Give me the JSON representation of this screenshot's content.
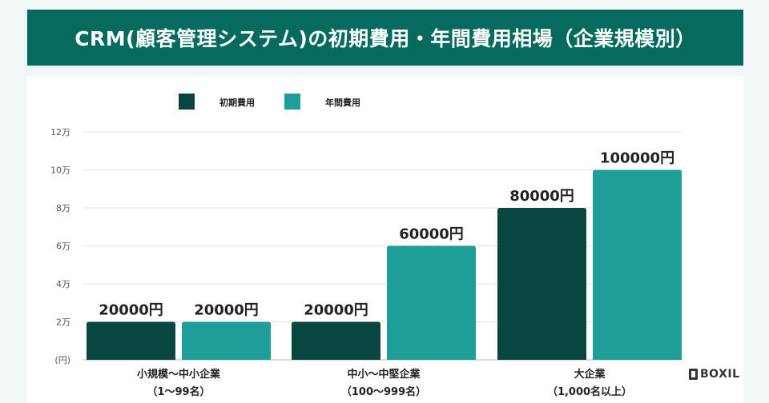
{
  "title": "CRM(顧客管理システム)の初期費用・年間費用相場（企業規模別）",
  "logo": {
    "text": "BOXIL",
    "icon": "boxil-logo-icon"
  },
  "colors": {
    "banner": "#066a5f",
    "initial": "#08463f",
    "annual": "#1f9d98",
    "grid": "#e3e3e3",
    "axis": "#555555",
    "text": "#222222"
  },
  "chart_data": {
    "type": "bar",
    "categories": [
      [
        "小規模〜中小企業",
        "（1〜99名）"
      ],
      [
        "中小〜中堅企業",
        "（100〜999名）"
      ],
      [
        "大企業",
        "（1,000名以上）"
      ]
    ],
    "series": [
      {
        "name": "初期費用",
        "values": [
          20000,
          20000,
          80000
        ],
        "labels": [
          "20000円",
          "20000円",
          "80000円"
        ]
      },
      {
        "name": "年間費用",
        "values": [
          20000,
          60000,
          100000
        ],
        "labels": [
          "20000円",
          "60000円",
          "100000円"
        ]
      }
    ],
    "y_ticks": [
      {
        "value": 0,
        "label": "(円)"
      },
      {
        "value": 20000,
        "label": "2万"
      },
      {
        "value": 40000,
        "label": "4万"
      },
      {
        "value": 60000,
        "label": "6万"
      },
      {
        "value": 80000,
        "label": "8万"
      },
      {
        "value": 100000,
        "label": "10万"
      },
      {
        "value": 120000,
        "label": "12万"
      }
    ],
    "ylim": [
      0,
      120000
    ],
    "legend_position": "top-left",
    "grid": true
  }
}
